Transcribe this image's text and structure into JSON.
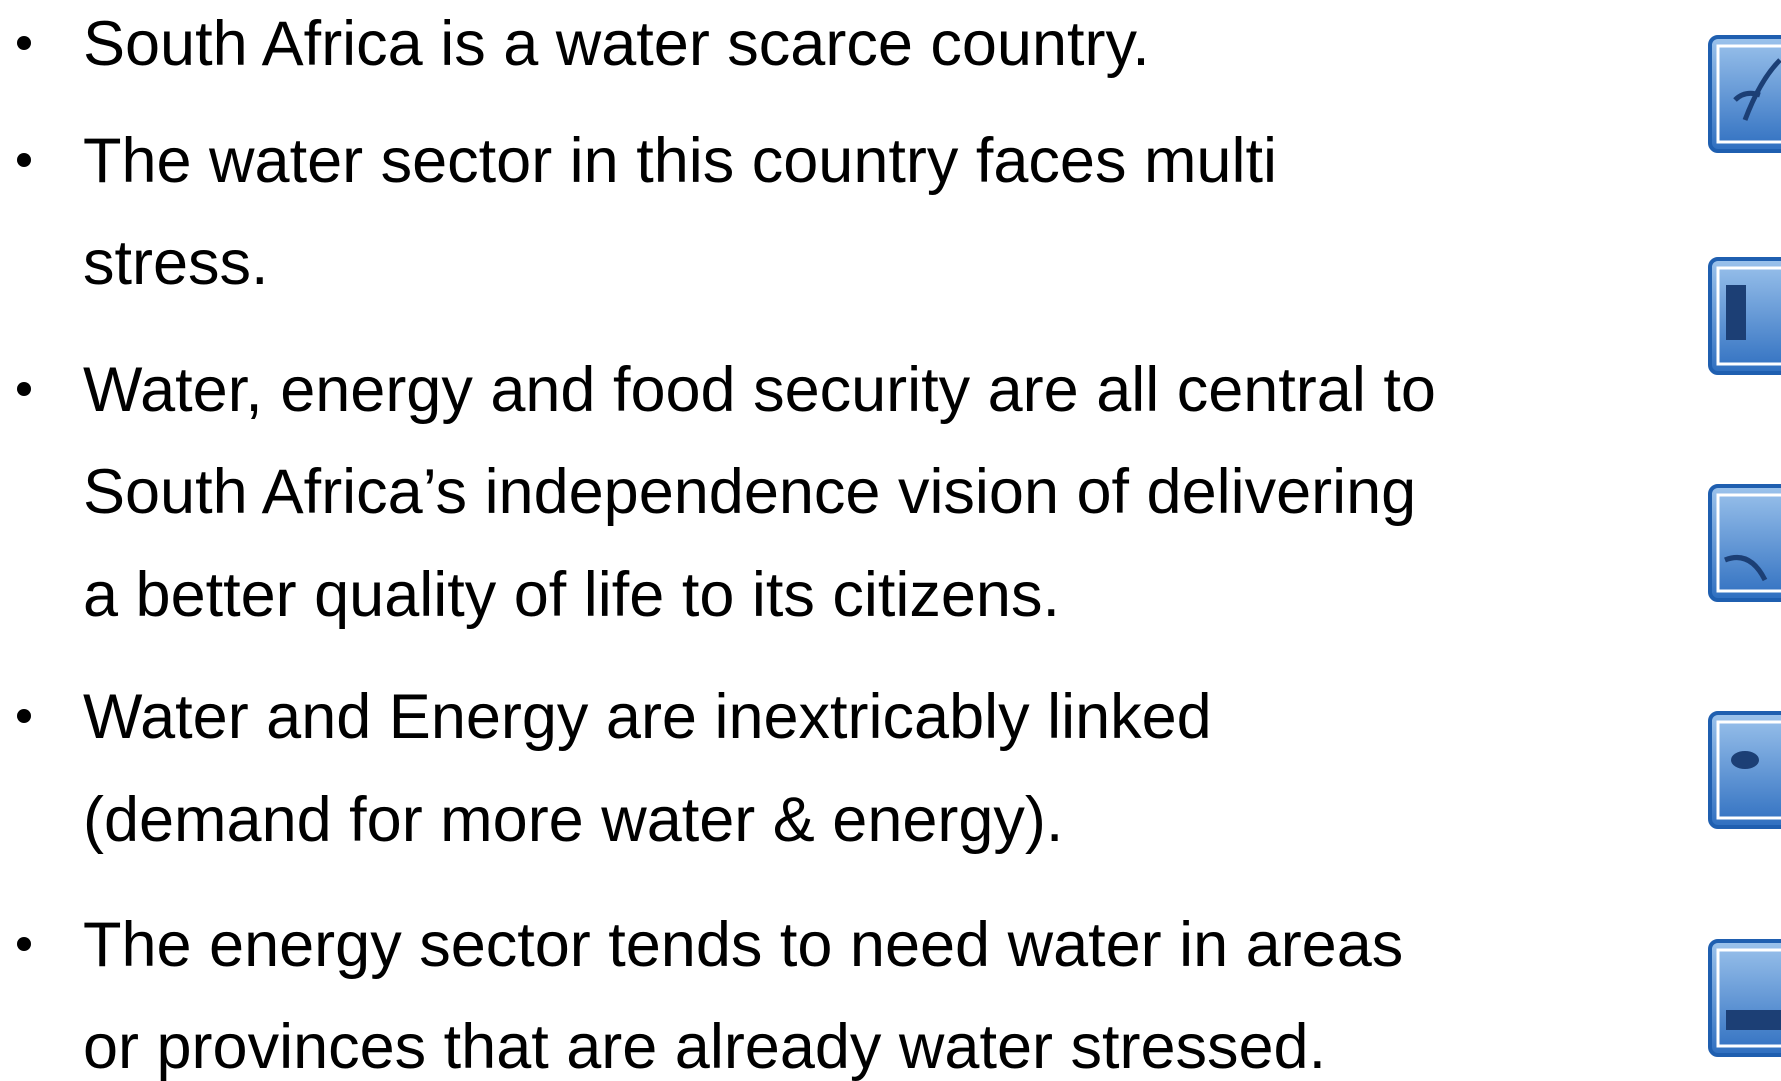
{
  "bullets": [
    {
      "lines": [
        "South Africa is a water scarce country."
      ]
    },
    {
      "lines": [
        "The water sector in this country faces multi",
        "stress."
      ]
    },
    {
      "lines": [
        "Water, energy and food security are all central to",
        "South Africa’s independence vision of delivering",
        "a better quality of life to its citizens."
      ]
    },
    {
      "lines": [
        "Water and Energy are inextricably linked",
        "(demand for more water & energy)."
      ]
    },
    {
      "lines": [
        "The energy sector tends to need water in areas",
        "or provinces that are already water stressed."
      ]
    }
  ]
}
